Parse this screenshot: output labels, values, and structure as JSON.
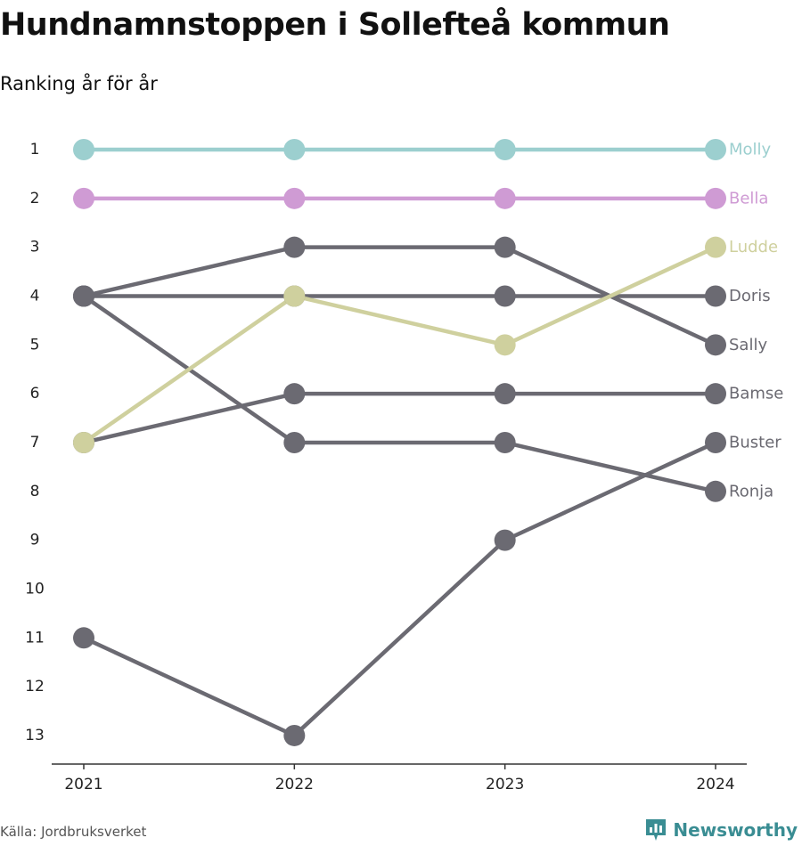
{
  "title": "Hundnamnstoppen i Sollefteå kommun",
  "subtitle": "Ranking år för år",
  "source": "Källa: Jordbruksverket",
  "brand": {
    "name": "Newsworthy",
    "color": "#3a8d93",
    "icon": "bar-chart-logo-icon"
  },
  "chart_data": {
    "type": "line",
    "title": "Hundnamnstoppen i Sollefteå kommun",
    "subtitle": "Ranking år för år",
    "x": [
      "2021",
      "2022",
      "2023",
      "2024"
    ],
    "y_ticks": [
      "1",
      "2",
      "3",
      "4",
      "5",
      "6",
      "7",
      "8",
      "9",
      "10",
      "11",
      "12",
      "13"
    ],
    "ylim": [
      1,
      13
    ],
    "y_reversed": true,
    "grid": false,
    "legend": "direct-labels-right",
    "default_color": "#6b6a72",
    "series": [
      {
        "name": "Molly",
        "values": [
          1,
          1,
          1,
          1
        ],
        "color": "#9ccfcf"
      },
      {
        "name": "Bella",
        "values": [
          2,
          2,
          2,
          2
        ],
        "color": "#cf9bd4"
      },
      {
        "name": "Ludde",
        "values": [
          7,
          4,
          5,
          3
        ],
        "color": "#cfd09e"
      },
      {
        "name": "Doris",
        "values": [
          4,
          4,
          4,
          4
        ],
        "color": "#6b6a72"
      },
      {
        "name": "Sally",
        "values": [
          4,
          3,
          3,
          5
        ],
        "color": "#6b6a72"
      },
      {
        "name": "Bamse",
        "values": [
          7,
          6,
          6,
          6
        ],
        "color": "#6b6a72"
      },
      {
        "name": "Buster",
        "values": [
          11,
          13,
          9,
          7
        ],
        "color": "#6b6a72"
      },
      {
        "name": "Ronja",
        "values": [
          4,
          7,
          7,
          8
        ],
        "color": "#6b6a72"
      }
    ]
  }
}
